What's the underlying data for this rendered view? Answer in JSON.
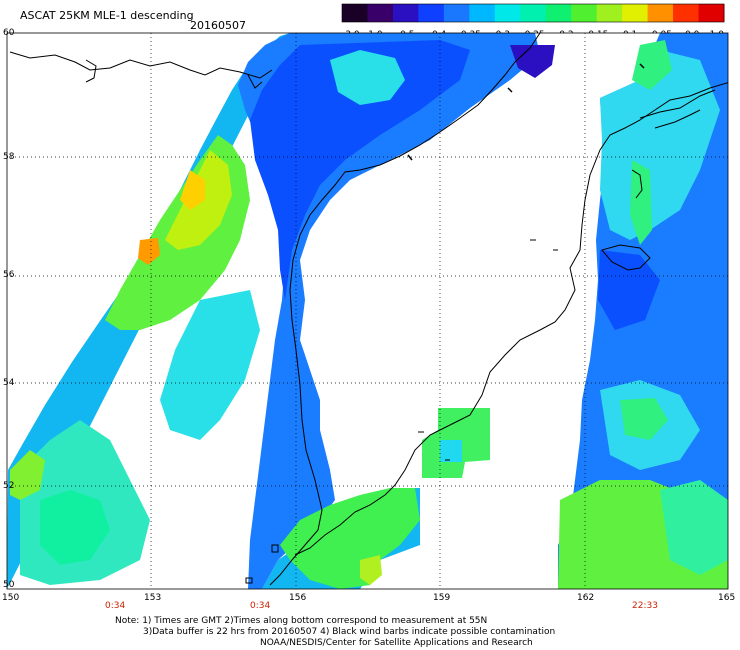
{
  "header": {
    "title": "ASCAT 25KM MLE-1 descending",
    "date": "20160507"
  },
  "colorbar": {
    "colors": [
      "#1a0026",
      "#3a006a",
      "#2a10c0",
      "#1040ff",
      "#1a78ff",
      "#00b8ff",
      "#00e8e8",
      "#00f0b0",
      "#10f070",
      "#50f030",
      "#a0f020",
      "#e0f000",
      "#ff9000",
      "#ff3000",
      "#e00000"
    ],
    "labels": [
      "-3.0",
      "-1.0",
      "-0.5",
      "-0.4",
      "-0.35",
      "-0.3",
      "-0.25",
      "-0.2",
      "-0.15",
      "-0.1",
      "-0.05",
      "0.0",
      "1.0"
    ]
  },
  "map": {
    "lat_labels": [
      "60",
      "58",
      "56",
      "54",
      "52",
      "50"
    ],
    "lon_labels": [
      "150",
      "153",
      "156",
      "159",
      "162",
      "165"
    ],
    "time_labels": [
      "0:34",
      "0:34",
      "22:33"
    ]
  },
  "notes": {
    "line1": "Note: 1) Times are GMT 2)Times along bottom correspond to measurement at 55N",
    "line2": "3)Data buffer is 22 hrs from 20160507 4) Black wind barbs indicate possible contamination",
    "line3": "NOAA/NESDIS/Center for Satellite Applications and Research"
  }
}
